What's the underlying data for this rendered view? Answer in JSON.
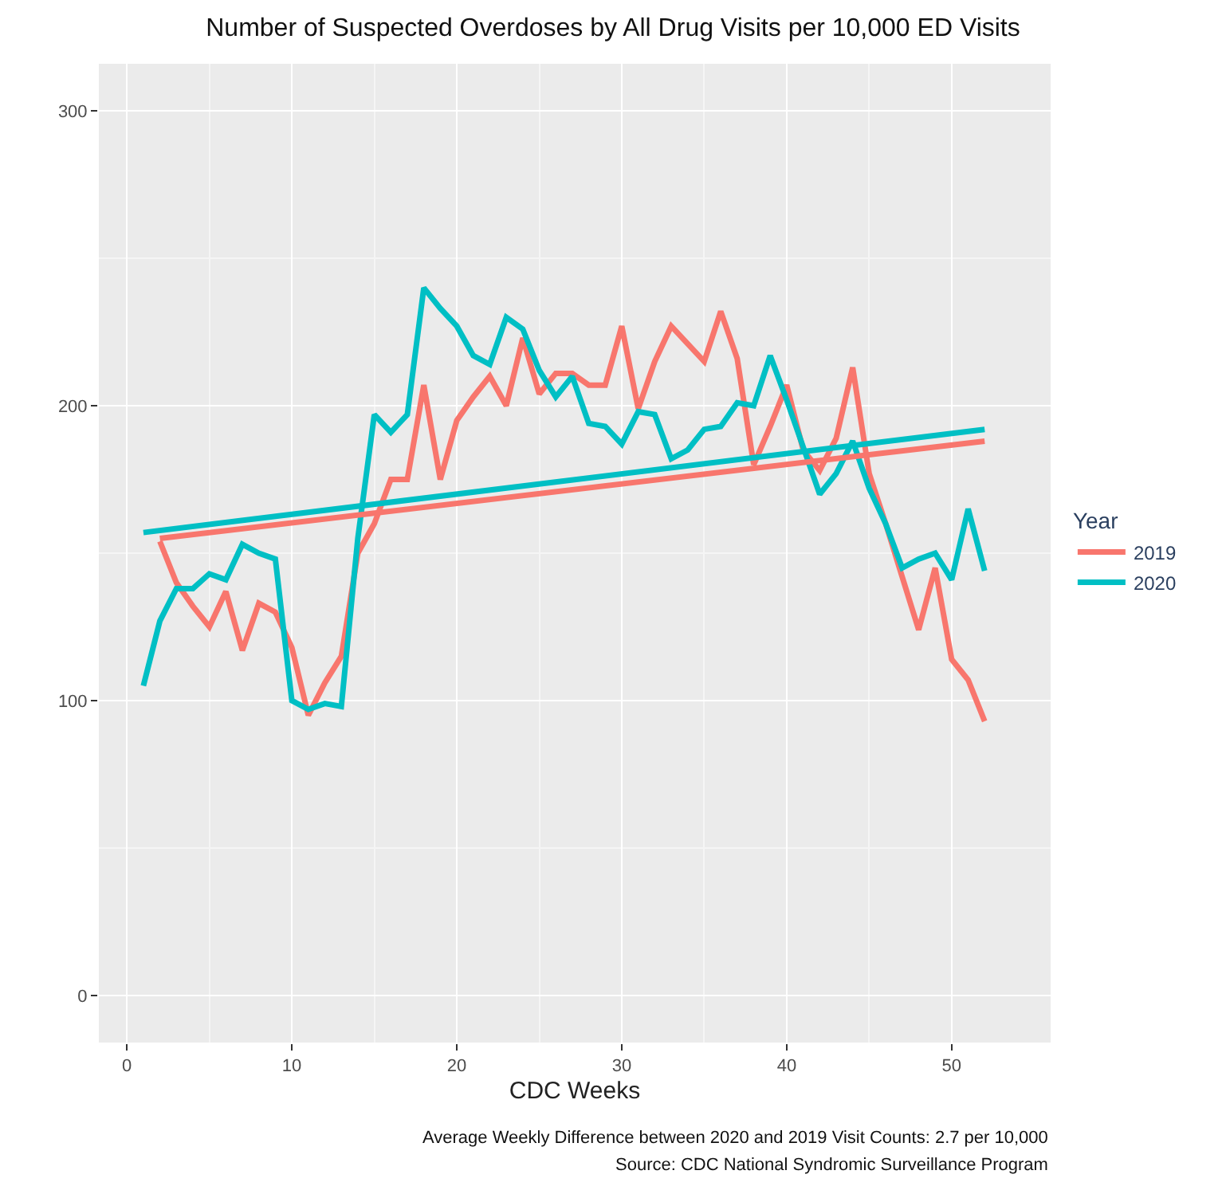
{
  "chart_data": {
    "type": "line",
    "title": "Number of Suspected Overdoses by All Drug Visits per 10,000 ED Visits",
    "xlabel": "CDC Weeks",
    "legend_title": "Year",
    "series": [
      {
        "name": "2019",
        "color": "#f8766d",
        "x": [
          2,
          3,
          4,
          5,
          6,
          7,
          8,
          9,
          10,
          11,
          12,
          13,
          14,
          15,
          16,
          17,
          18,
          19,
          20,
          21,
          22,
          23,
          24,
          25,
          26,
          27,
          28,
          29,
          30,
          31,
          32,
          33,
          34,
          35,
          36,
          37,
          38,
          39,
          40,
          41,
          42,
          43,
          44,
          45,
          46,
          47,
          48,
          49,
          50,
          51,
          52
        ],
        "values": [
          154,
          140,
          132,
          125,
          137,
          117,
          133,
          130,
          118,
          95,
          106,
          115,
          150,
          160,
          175,
          175,
          207,
          175,
          195,
          203,
          210,
          200,
          223,
          204,
          211,
          211,
          207,
          207,
          227,
          199,
          215,
          227,
          221,
          215,
          232,
          216,
          180,
          193,
          207,
          185,
          178,
          189,
          213,
          177,
          160,
          142,
          124,
          145,
          114,
          107,
          93
        ]
      },
      {
        "name": "2020",
        "color": "#00bfc4",
        "x": [
          1,
          2,
          3,
          4,
          5,
          6,
          7,
          8,
          9,
          10,
          11,
          12,
          13,
          14,
          15,
          16,
          17,
          18,
          19,
          20,
          21,
          22,
          23,
          24,
          25,
          26,
          27,
          28,
          29,
          30,
          31,
          32,
          33,
          34,
          35,
          36,
          37,
          38,
          39,
          40,
          41,
          42,
          43,
          44,
          45,
          46,
          47,
          48,
          49,
          50,
          51,
          52
        ],
        "values": [
          105,
          127,
          138,
          138,
          143,
          141,
          153,
          150,
          148,
          100,
          97,
          99,
          98,
          155,
          197,
          191,
          197,
          240,
          233,
          227,
          217,
          214,
          230,
          226,
          212,
          203,
          210,
          194,
          193,
          187,
          198,
          197,
          182,
          185,
          192,
          193,
          201,
          200,
          217,
          202,
          186,
          170,
          177,
          188,
          172,
          160,
          145,
          148,
          150,
          141,
          165,
          144
        ]
      },
      {
        "color": "#f8766d",
        "x": [
          2,
          52
        ],
        "values": [
          155,
          188
        ]
      },
      {
        "color": "#00bfc4",
        "x": [
          1,
          52
        ],
        "values": [
          157,
          192
        ]
      }
    ],
    "xlim": [
      -1.7,
      56
    ],
    "ylim": [
      -16,
      316
    ],
    "xticks": [
      0,
      10,
      20,
      30,
      40,
      50
    ],
    "yticks": [
      0,
      100,
      200,
      300
    ],
    "grid": true,
    "legend": "right",
    "annotations": [
      "Average Weekly Difference between 2020 and 2019 Visit Counts: 2.7 per 10,000",
      "Source: CDC National Syndromic Surveillance Program"
    ]
  }
}
